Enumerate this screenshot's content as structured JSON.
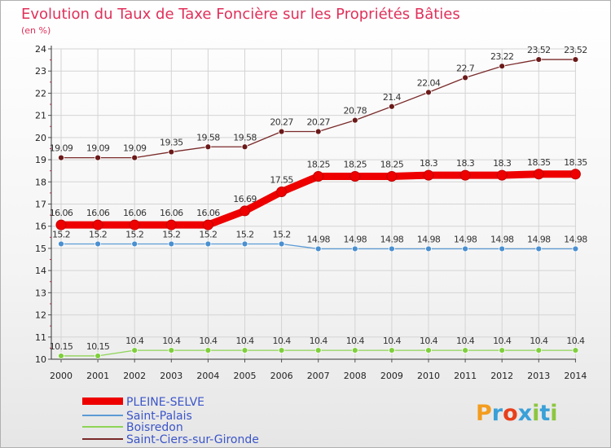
{
  "chart_data": {
    "type": "line",
    "title": "Evolution du Taux de Taxe Foncière sur les Propriétés Bâties",
    "unit_label": "(en %)",
    "x": [
      "2000",
      "2001",
      "2002",
      "2003",
      "2004",
      "2005",
      "2006",
      "2007",
      "2008",
      "2009",
      "2010",
      "2011",
      "2012",
      "2013",
      "2014"
    ],
    "ylim": [
      10,
      24
    ],
    "yticks": [
      "10",
      "11",
      "12",
      "13",
      "14",
      "15",
      "16",
      "17",
      "18",
      "19",
      "20",
      "21",
      "22",
      "23",
      "24"
    ],
    "grid": true,
    "legend_position": "bottom-left",
    "series": [
      {
        "name": "PLEINE-SELVE",
        "color": "#ee0000",
        "values": [
          16.06,
          16.06,
          16.06,
          16.06,
          16.06,
          16.69,
          17.55,
          18.25,
          18.25,
          18.25,
          18.3,
          18.3,
          18.3,
          18.35,
          18.35
        ],
        "labels": [
          "16.06",
          "16.06",
          "16.06",
          "16.06",
          "16.06",
          "16.69",
          "17.55",
          "18.25",
          "18.25",
          "18.25",
          "18.3",
          "18.3",
          "18.3",
          "18.35",
          "18.35"
        ]
      },
      {
        "name": "Saint-Palais",
        "color": "#5b9bd5",
        "values": [
          15.2,
          15.2,
          15.2,
          15.2,
          15.2,
          15.2,
          15.2,
          14.98,
          14.98,
          14.98,
          14.98,
          14.98,
          14.98,
          14.98,
          14.98
        ],
        "labels": [
          "15.2",
          "15.2",
          "15.2",
          "15.2",
          "15.2",
          "15.2",
          "15.2",
          "14.98",
          "14.98",
          "14.98",
          "14.98",
          "14.98",
          "14.98",
          "14.98",
          "14.98"
        ]
      },
      {
        "name": "Boisredon",
        "color": "#8ed457",
        "values": [
          10.15,
          10.15,
          10.4,
          10.4,
          10.4,
          10.4,
          10.4,
          10.4,
          10.4,
          10.4,
          10.4,
          10.4,
          10.4,
          10.4,
          10.4
        ],
        "labels": [
          "10.15",
          "10.15",
          "10.4",
          "10.4",
          "10.4",
          "10.4",
          "10.4",
          "10.4",
          "10.4",
          "10.4",
          "10.4",
          "10.4",
          "10.4",
          "10.4",
          "10.4"
        ]
      },
      {
        "name": "Saint-Ciers-sur-Gironde",
        "color": "#7a2a2a",
        "values": [
          19.09,
          19.09,
          19.09,
          19.35,
          19.58,
          19.58,
          20.27,
          20.27,
          20.78,
          21.4,
          22.04,
          22.7,
          23.22,
          23.52,
          23.52
        ],
        "labels": [
          "19.09",
          "19.09",
          "19.09",
          "19.35",
          "19.58",
          "19.58",
          "20.27",
          "20.27",
          "20.78",
          "21.4",
          "22.04",
          "22.7",
          "23.22",
          "23.52",
          "23.52"
        ]
      }
    ]
  },
  "logo": {
    "text": "Proxiti",
    "letters": [
      "P",
      "r",
      "o",
      "x",
      "i",
      "t",
      "i"
    ],
    "colors": [
      "#f39c1f",
      "#3aa0d8",
      "#e8401c",
      "#3aa0d8",
      "#8cc63f",
      "#3aa0d8",
      "#8cc63f"
    ]
  }
}
